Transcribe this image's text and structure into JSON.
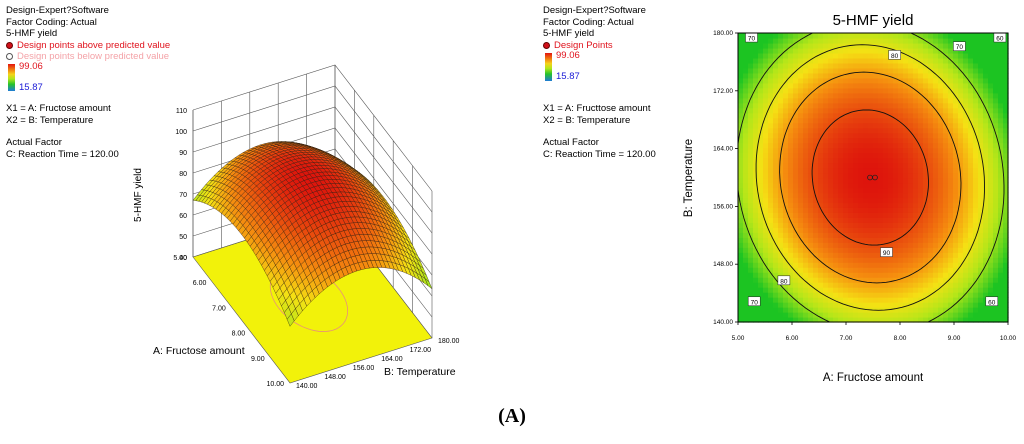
{
  "left_legend": {
    "line1": "Design-Expert?Software",
    "line2": "Factor Coding: Actual",
    "line3": "5-HMF yield",
    "above": "Design points above predicted value",
    "below": "Design points below predicted value",
    "max": "99.06",
    "min": "15.87",
    "x1": "X1 = A: Fructose amount",
    "x2": "X2 = B: Temperature",
    "actual_factor": "Actual Factor",
    "factor_c": "C: Reaction Time = 120.00"
  },
  "right_legend": {
    "line1": "Design-Expert?Software",
    "line2": "Factor Coding: Actual",
    "line3": "5-HMF yield",
    "points": "Design Points",
    "max": "99.06",
    "min": "15.87",
    "x1": "X1 = A: Fructtose amount",
    "x2": "X2 = B: Temperature",
    "actual_factor": "Actual Factor",
    "factor_c": "C: Reaction Time = 120.00"
  },
  "caption": "(A)",
  "colors": {
    "high": "#e3140f",
    "mid": "#f5d31a",
    "low": "#27c22a",
    "floor": "#f2f20a"
  },
  "chart_data": [
    {
      "type": "surface",
      "zlabel": "5-HMF yield",
      "xlabel": "A: Fructose amount",
      "ylabel": "B: Temperature",
      "x_ticks": [
        "5.00",
        "6.00",
        "7.00",
        "8.00",
        "9.00",
        "10.00"
      ],
      "y_ticks": [
        "140.00",
        "148.00",
        "156.00",
        "164.00",
        "172.00",
        "180.00"
      ],
      "z_ticks": [
        "40",
        "50",
        "60",
        "70",
        "80",
        "90",
        "100",
        "110"
      ],
      "xlim": [
        5,
        10
      ],
      "ylim": [
        140,
        180
      ],
      "zlim": [
        40,
        110
      ],
      "model": {
        "peak_x": 7.5,
        "peak_y": 159,
        "peak_z": 97,
        "curv_x": 2.2,
        "curv_y": 0.045
      }
    },
    {
      "type": "contour",
      "title": "5-HMF yield",
      "xlabel": "A: Fructose amount",
      "ylabel": "B: Temperature",
      "x_ticks": [
        "5.00",
        "6.00",
        "7.00",
        "8.00",
        "9.00",
        "10.00"
      ],
      "y_ticks": [
        "140.00",
        "148.00",
        "156.00",
        "164.00",
        "172.00",
        "180.00"
      ],
      "xlim": [
        5,
        10
      ],
      "ylim": [
        140,
        180
      ],
      "levels": [
        60,
        70,
        80,
        90
      ],
      "contour_labels": [
        {
          "text": "70",
          "x": 5.25,
          "y": 179.3
        },
        {
          "text": "70",
          "x": 9.1,
          "y": 178.1
        },
        {
          "text": "60",
          "x": 9.85,
          "y": 179.3
        },
        {
          "text": "80",
          "x": 7.9,
          "y": 176.9
        },
        {
          "text": "80",
          "x": 5.85,
          "y": 145.7
        },
        {
          "text": "90",
          "x": 7.75,
          "y": 149.6
        },
        {
          "text": "70",
          "x": 5.3,
          "y": 142.8
        },
        {
          "text": "60",
          "x": 9.7,
          "y": 142.8
        }
      ],
      "design_points": [
        {
          "x": 7.5,
          "y": 160
        }
      ]
    }
  ]
}
